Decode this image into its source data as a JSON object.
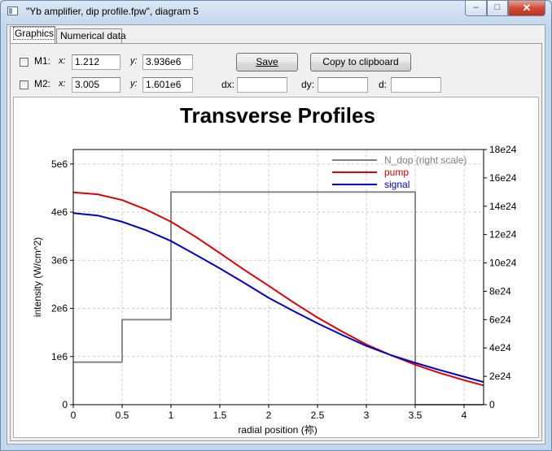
{
  "window": {
    "title": "\"Yb amplifier, dip profile.fpw\", diagram 5",
    "minimize_glyph": "–",
    "maximize_glyph": "□",
    "close_glyph": "✕"
  },
  "tabs": [
    {
      "label": "Graphics",
      "active": true
    },
    {
      "label": "Numerical data",
      "active": false
    }
  ],
  "markers": {
    "m1": {
      "label": "M1:",
      "x_label": "x:",
      "x_value": "1.212",
      "y_label": "y:",
      "y_value": "3.936e6",
      "checked": false
    },
    "m2": {
      "label": "M2:",
      "x_label": "x:",
      "x_value": "3.005",
      "y_label": "y:",
      "y_value": "1.601e6",
      "checked": false
    },
    "dx_label": "dx:",
    "dx_value": "",
    "dy_label": "dy:",
    "dy_value": "",
    "d_label": "d:",
    "d_value": ""
  },
  "buttons": {
    "save": "Save",
    "copy": "Copy to clipboard"
  },
  "chart_data": {
    "type": "line",
    "title": "Transverse Profiles",
    "xlabel": "radial position (祢)",
    "ylabel": "intensity (W/cm^2)",
    "xlim": [
      0,
      4.2
    ],
    "ylim_left": [
      0,
      5300000
    ],
    "ylim_right": [
      0,
      1.8e+25
    ],
    "x_ticks": [
      "0",
      "0.5",
      "1",
      "1.5",
      "2",
      "2.5",
      "3",
      "3.5",
      "4"
    ],
    "y_left_ticks": [
      "0",
      "1e6",
      "2e6",
      "3e6",
      "4e6",
      "5e6"
    ],
    "y_right_ticks": [
      "0",
      "2e24",
      "4e24",
      "6e24",
      "8e24",
      "10e24",
      "12e24",
      "14e24",
      "16e24",
      "18e24"
    ],
    "grid": true,
    "legend_position": "top-right",
    "series": [
      {
        "name": "N_dop (right scale)",
        "color": "#808080",
        "axis": "right",
        "step": true,
        "x": [
          0,
          0.5,
          0.5,
          1.0,
          1.0,
          3.5,
          3.5,
          4.2
        ],
        "y": [
          3e+24,
          3e+24,
          6e+24,
          6e+24,
          1.5e+25,
          1.5e+25,
          0,
          0
        ]
      },
      {
        "name": "pump",
        "color": "#e00000",
        "axis": "left",
        "x": [
          0,
          0.25,
          0.5,
          0.75,
          1.0,
          1.25,
          1.5,
          1.75,
          2.0,
          2.25,
          2.5,
          2.75,
          3.0,
          3.25,
          3.5,
          3.75,
          4.0,
          4.2
        ],
        "y": [
          4410000,
          4370000,
          4250000,
          4050000,
          3800000,
          3490000,
          3150000,
          2800000,
          2470000,
          2130000,
          1810000,
          1520000,
          1250000,
          1030000,
          830000,
          660000,
          510000,
          400000
        ]
      },
      {
        "name": "signal",
        "color": "#0000c8",
        "axis": "left",
        "x": [
          0,
          0.25,
          0.5,
          0.75,
          1.0,
          1.25,
          1.5,
          1.75,
          2.0,
          2.25,
          2.5,
          2.75,
          3.0,
          3.25,
          3.5,
          3.75,
          4.0,
          4.2
        ],
        "y": [
          3980000,
          3930000,
          3800000,
          3620000,
          3400000,
          3120000,
          2830000,
          2530000,
          2220000,
          1950000,
          1690000,
          1450000,
          1220000,
          1030000,
          870000,
          720000,
          580000,
          470000
        ]
      }
    ]
  }
}
